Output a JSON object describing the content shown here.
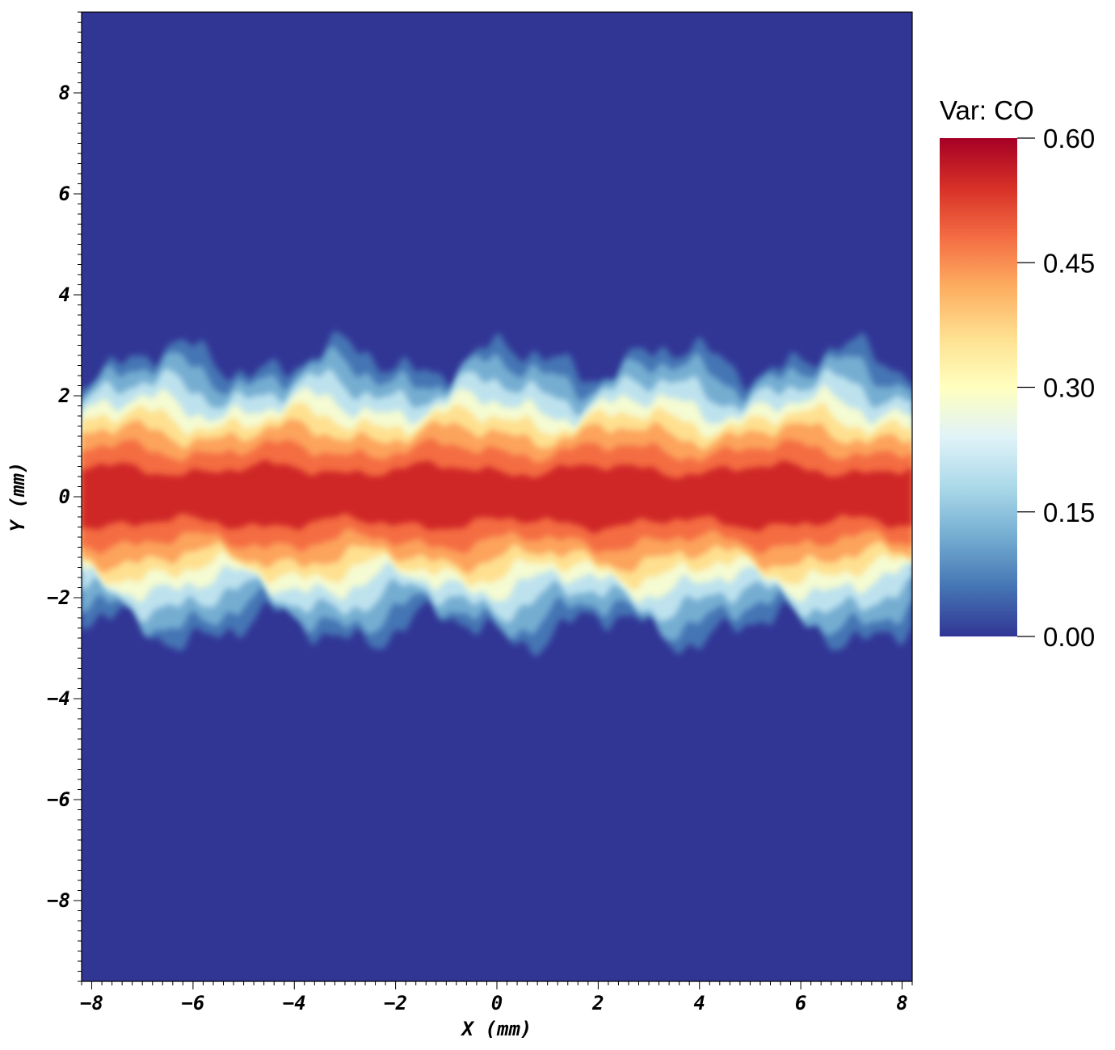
{
  "chart_data": {
    "type": "heatmap",
    "title": "",
    "xlabel": "X (mm)",
    "ylabel": "Y (mm)",
    "xlim": [
      -8.2,
      8.2
    ],
    "ylim": [
      -9.6,
      9.6
    ],
    "x_ticks": [
      -8,
      -6,
      -4,
      -2,
      0,
      2,
      4,
      6,
      8
    ],
    "x_tick_labels": [
      "−8",
      "−6",
      "−4",
      "−2",
      "0",
      "2",
      "4",
      "6",
      "8"
    ],
    "y_ticks": [
      8,
      6,
      4,
      2,
      0,
      -2,
      -4,
      -6,
      -8
    ],
    "y_tick_labels": [
      "8",
      "6",
      "4",
      "2",
      "0",
      "−2",
      "−4",
      "−6",
      "−8"
    ],
    "grid": false,
    "colorbar": {
      "title": "Var: CO",
      "range": [
        0.0,
        0.6
      ],
      "ticks": [
        0.6,
        0.45,
        0.3,
        0.15,
        0.0
      ],
      "tick_labels": [
        "0.60",
        "0.45",
        "0.30",
        "0.15",
        "0.00"
      ],
      "colormap": "RdYlBu_r",
      "colors": [
        "#313695",
        "#4575b4",
        "#74add1",
        "#abd9e9",
        "#e0f3f8",
        "#ffffbf",
        "#fee090",
        "#fdae61",
        "#f46d43",
        "#d73027",
        "#a50026"
      ],
      "placement": "right"
    },
    "background_color": "#313695",
    "field_description_values": {
      "jet_band_y_range_mm": [
        -2.9,
        2.7
      ],
      "core_max_value": 0.55
    }
  }
}
